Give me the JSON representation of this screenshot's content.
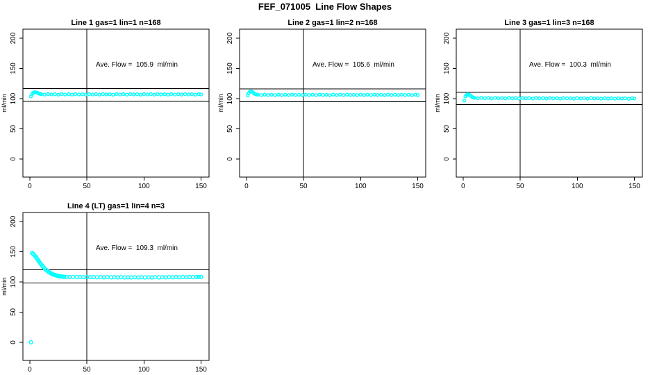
{
  "figure_title": "FEF_071005  Line Flow Shapes",
  "colors": {
    "data_point": "#00ffff",
    "axis": "#000000",
    "reference_line": "#000000",
    "background": "#ffffff",
    "text": "#000000"
  },
  "chart_data": [
    {
      "type": "scatter",
      "title": "Line 1 gas=1 lin=1 n=168",
      "annotation": "Ave. Flow =  105.9  ml/min",
      "ave_flow_ml_min": 105.9,
      "gas": 1,
      "lin": 1,
      "n": 168,
      "ylabel": "ml/min",
      "xlim": [
        -6,
        157
      ],
      "ylim": [
        -30,
        215
      ],
      "xticks": [
        0,
        50,
        100,
        150
      ],
      "yticks": [
        0,
        50,
        100,
        150,
        200
      ],
      "vline_x": 50,
      "hlines": [
        116.5,
        95.3
      ],
      "marker": "open-circle",
      "points": [
        [
          1,
          103.5
        ],
        [
          2,
          107.5
        ],
        [
          3,
          109.5
        ],
        [
          4,
          110.5
        ],
        [
          5,
          110.6
        ],
        [
          6,
          110.1
        ],
        [
          7,
          109.3
        ],
        [
          8,
          108.4
        ],
        [
          9,
          107.8
        ],
        [
          10,
          107.3
        ],
        [
          13,
          106.6
        ],
        [
          16,
          107.5
        ],
        [
          19,
          106.9
        ],
        [
          22,
          107.2
        ],
        [
          25,
          106.5
        ],
        [
          28,
          107.4
        ],
        [
          31,
          106.8
        ],
        [
          34,
          107.3
        ],
        [
          37,
          106.6
        ],
        [
          40,
          107.5
        ],
        [
          43,
          106.9
        ],
        [
          46,
          107.2
        ],
        [
          49,
          106.5
        ],
        [
          52,
          107.4
        ],
        [
          55,
          106.8
        ],
        [
          58,
          107.3
        ],
        [
          61,
          106.6
        ],
        [
          64,
          107.5
        ],
        [
          67,
          106.9
        ],
        [
          70,
          107.2
        ],
        [
          73,
          106.5
        ],
        [
          76,
          107.4
        ],
        [
          79,
          106.8
        ],
        [
          82,
          107.3
        ],
        [
          85,
          106.6
        ],
        [
          88,
          107.5
        ],
        [
          91,
          106.9
        ],
        [
          94,
          107.2
        ],
        [
          97,
          106.5
        ],
        [
          100,
          107.4
        ],
        [
          103,
          106.8
        ],
        [
          106,
          107.3
        ],
        [
          109,
          106.6
        ],
        [
          112,
          107.5
        ],
        [
          115,
          106.9
        ],
        [
          118,
          107.2
        ],
        [
          121,
          106.5
        ],
        [
          124,
          107.4
        ],
        [
          127,
          106.8
        ],
        [
          130,
          107.3
        ],
        [
          133,
          106.6
        ],
        [
          136,
          107.5
        ],
        [
          139,
          106.9
        ],
        [
          142,
          107.2
        ],
        [
          145,
          106.5
        ],
        [
          148,
          107.4
        ],
        [
          150,
          106.8
        ]
      ]
    },
    {
      "type": "scatter",
      "title": "Line 2 gas=1 lin=2 n=168",
      "annotation": "Ave. Flow =  105.6  ml/min",
      "ave_flow_ml_min": 105.6,
      "gas": 1,
      "lin": 2,
      "n": 168,
      "ylabel": "ml/min",
      "xlim": [
        -6,
        157
      ],
      "ylim": [
        -30,
        215
      ],
      "xticks": [
        0,
        50,
        100,
        150
      ],
      "yticks": [
        0,
        50,
        100,
        150,
        200
      ],
      "vline_x": 50,
      "hlines": [
        116.2,
        95.0
      ],
      "marker": "open-circle",
      "points": [
        [
          1,
          105.2
        ],
        [
          2,
          109
        ],
        [
          3,
          111.5
        ],
        [
          4,
          112
        ],
        [
          5,
          111.2
        ],
        [
          6,
          109.8
        ],
        [
          7,
          108.2
        ],
        [
          8,
          107.2
        ],
        [
          9,
          106.6
        ],
        [
          10,
          106.5
        ],
        [
          13,
          105.8
        ],
        [
          16,
          106.7
        ],
        [
          19,
          106.1
        ],
        [
          22,
          106.4
        ],
        [
          25,
          105.7
        ],
        [
          28,
          106.6
        ],
        [
          31,
          106
        ],
        [
          34,
          106.5
        ],
        [
          37,
          105.8
        ],
        [
          40,
          106.7
        ],
        [
          43,
          106.1
        ],
        [
          46,
          106.4
        ],
        [
          49,
          105.7
        ],
        [
          52,
          106.6
        ],
        [
          55,
          106
        ],
        [
          58,
          106.5
        ],
        [
          61,
          105.8
        ],
        [
          64,
          106.7
        ],
        [
          67,
          106.1
        ],
        [
          70,
          106.4
        ],
        [
          73,
          105.7
        ],
        [
          76,
          106.6
        ],
        [
          79,
          106
        ],
        [
          82,
          106.5
        ],
        [
          85,
          105.8
        ],
        [
          88,
          106.7
        ],
        [
          91,
          106.1
        ],
        [
          94,
          106.4
        ],
        [
          97,
          105.7
        ],
        [
          100,
          106.6
        ],
        [
          103,
          106
        ],
        [
          106,
          106.5
        ],
        [
          109,
          105.8
        ],
        [
          112,
          106.7
        ],
        [
          115,
          106.1
        ],
        [
          118,
          106.4
        ],
        [
          121,
          105.7
        ],
        [
          124,
          106.6
        ],
        [
          127,
          106
        ],
        [
          130,
          106.5
        ],
        [
          133,
          105.8
        ],
        [
          136,
          106.7
        ],
        [
          139,
          106.1
        ],
        [
          142,
          106.4
        ],
        [
          145,
          105.7
        ],
        [
          148,
          106.6
        ],
        [
          150,
          106
        ]
      ]
    },
    {
      "type": "scatter",
      "title": "Line 3 gas=1 lin=3 n=168",
      "annotation": "Ave. Flow =  100.3  ml/min",
      "ave_flow_ml_min": 100.3,
      "gas": 1,
      "lin": 3,
      "n": 168,
      "ylabel": "ml/min",
      "xlim": [
        -6,
        157
      ],
      "ylim": [
        -30,
        215
      ],
      "xticks": [
        0,
        50,
        100,
        150
      ],
      "yticks": [
        0,
        50,
        100,
        150,
        200
      ],
      "vline_x": 50,
      "hlines": [
        110.3,
        90.3
      ],
      "marker": "open-circle",
      "points": [
        [
          1,
          96.8
        ],
        [
          2,
          103.5
        ],
        [
          3,
          106
        ],
        [
          4,
          107.2
        ],
        [
          5,
          106.8
        ],
        [
          6,
          105.5
        ],
        [
          7,
          104
        ],
        [
          8,
          102.6
        ],
        [
          9,
          101.6
        ],
        [
          10,
          101.3
        ],
        [
          13,
          100.5
        ],
        [
          16,
          101.4
        ],
        [
          19,
          100.8
        ],
        [
          22,
          101
        ],
        [
          25,
          100.3
        ],
        [
          28,
          101.2
        ],
        [
          31,
          100.6
        ],
        [
          34,
          101
        ],
        [
          37,
          100.3
        ],
        [
          40,
          101.2
        ],
        [
          43,
          100.6
        ],
        [
          46,
          100.9
        ],
        [
          49,
          100.2
        ],
        [
          52,
          101.1
        ],
        [
          55,
          100.5
        ],
        [
          58,
          100.9
        ],
        [
          61,
          100.2
        ],
        [
          64,
          101.1
        ],
        [
          67,
          100.5
        ],
        [
          70,
          100.8
        ],
        [
          73,
          100.1
        ],
        [
          76,
          101
        ],
        [
          79,
          100.4
        ],
        [
          82,
          100.8
        ],
        [
          85,
          100.1
        ],
        [
          88,
          101
        ],
        [
          91,
          100.4
        ],
        [
          94,
          100.7
        ],
        [
          97,
          100
        ],
        [
          100,
          100.9
        ],
        [
          103,
          100.3
        ],
        [
          106,
          100.7
        ],
        [
          109,
          100
        ],
        [
          112,
          100.9
        ],
        [
          115,
          100.3
        ],
        [
          118,
          100.6
        ],
        [
          121,
          99.9
        ],
        [
          124,
          100.8
        ],
        [
          127,
          100.2
        ],
        [
          130,
          100.6
        ],
        [
          133,
          99.9
        ],
        [
          136,
          100.8
        ],
        [
          139,
          100.2
        ],
        [
          142,
          100.5
        ],
        [
          145,
          99.8
        ],
        [
          148,
          100.7
        ],
        [
          150,
          100.1
        ]
      ]
    },
    {
      "type": "scatter",
      "title": "Line 4 (LT) gas=1 lin=4 n=3",
      "annotation": "Ave. Flow =  109.3  ml/min",
      "ave_flow_ml_min": 109.3,
      "gas": 1,
      "lin": 4,
      "n": 3,
      "ylabel": "ml/min",
      "xlim": [
        -6,
        157
      ],
      "ylim": [
        -30,
        215
      ],
      "xticks": [
        0,
        50,
        100,
        150
      ],
      "yticks": [
        0,
        50,
        100,
        150,
        200
      ],
      "vline_x": 50,
      "hlines": [
        120.2,
        98.4
      ],
      "marker": "open-circle",
      "points": [
        [
          1,
          0
        ],
        [
          2,
          148
        ],
        [
          3,
          146.5
        ],
        [
          4,
          144.5
        ],
        [
          5,
          142
        ],
        [
          6,
          139.5
        ],
        [
          7,
          136.8
        ],
        [
          8,
          134
        ],
        [
          9,
          131.3
        ],
        [
          10,
          128.8
        ],
        [
          11,
          126.4
        ],
        [
          12,
          124.2
        ],
        [
          13,
          122.2
        ],
        [
          14,
          120.4
        ],
        [
          15,
          118.8
        ],
        [
          16,
          117.3
        ],
        [
          17,
          116
        ],
        [
          18,
          114.8
        ],
        [
          19,
          113.8
        ],
        [
          20,
          112.9
        ],
        [
          21,
          112.1
        ],
        [
          22,
          111.4
        ],
        [
          23,
          110.8
        ],
        [
          24,
          110.3
        ],
        [
          25,
          109.9
        ],
        [
          26,
          109.5
        ],
        [
          27,
          109.2
        ],
        [
          28,
          108.9
        ],
        [
          29,
          108.7
        ],
        [
          30,
          108.5
        ],
        [
          32,
          108.4
        ],
        [
          35,
          108.1
        ],
        [
          38,
          108.3
        ],
        [
          41,
          107.9
        ],
        [
          44,
          108.2
        ],
        [
          47,
          107.8
        ],
        [
          50,
          108.1
        ],
        [
          53,
          107.8
        ],
        [
          56,
          108
        ],
        [
          59,
          107.7
        ],
        [
          62,
          107.9
        ],
        [
          65,
          107.6
        ],
        [
          68,
          107.9
        ],
        [
          71,
          107.6
        ],
        [
          74,
          107.8
        ],
        [
          77,
          107.5
        ],
        [
          80,
          107.8
        ],
        [
          83,
          107.5
        ],
        [
          86,
          107.7
        ],
        [
          89,
          107.5
        ],
        [
          92,
          107.7
        ],
        [
          95,
          107.4
        ],
        [
          98,
          107.7
        ],
        [
          101,
          107.5
        ],
        [
          104,
          107.7
        ],
        [
          107,
          107.4
        ],
        [
          110,
          107.8
        ],
        [
          113,
          107.5
        ],
        [
          116,
          107.8
        ],
        [
          119,
          107.6
        ],
        [
          122,
          107.9
        ],
        [
          125,
          107.6
        ],
        [
          128,
          108
        ],
        [
          131,
          107.7
        ],
        [
          134,
          108.1
        ],
        [
          137,
          107.8
        ],
        [
          140,
          108.2
        ],
        [
          143,
          107.9
        ],
        [
          146,
          108.3
        ],
        [
          148,
          108.1
        ],
        [
          150,
          108.4
        ]
      ]
    }
  ]
}
